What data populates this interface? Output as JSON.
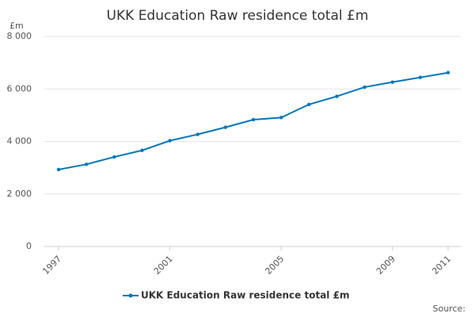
{
  "chart_data": {
    "type": "line",
    "title": "UKK Education Raw residence total £m",
    "y_unit": "£m",
    "source": "Source:",
    "x": [
      1997,
      1998,
      1999,
      2000,
      2001,
      2002,
      2003,
      2004,
      2005,
      2006,
      2007,
      2008,
      2009,
      2010,
      2011
    ],
    "series": [
      {
        "name": "UKK Education Raw residence total £m",
        "color": "#0077bb",
        "values": [
          2930,
          3130,
          3410,
          3660,
          4030,
          4270,
          4540,
          4830,
          4910,
          5410,
          5720,
          6070,
          6260,
          6440,
          6620
        ]
      }
    ],
    "xlim": [
      1997,
      2011
    ],
    "xticks": [
      1997,
      2001,
      2005,
      2009,
      2011
    ],
    "ylim": [
      0,
      8000
    ],
    "yticks": [
      0,
      {
        "value": 2000,
        "label": "2 000"
      },
      {
        "value": 4000,
        "label": "4 000"
      },
      {
        "value": 6000,
        "label": "6 000"
      },
      {
        "value": 8000,
        "label": "8 000"
      }
    ],
    "grid": true
  }
}
